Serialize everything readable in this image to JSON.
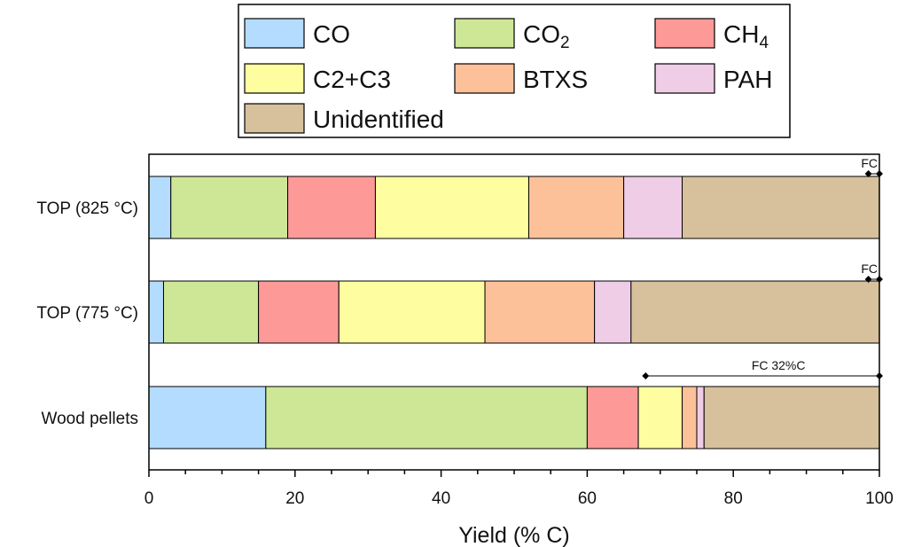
{
  "chart_data": {
    "type": "bar",
    "orientation": "horizontal",
    "stacked": true,
    "categories": [
      "TOP (825 °C)",
      "TOP (775 °C)",
      "Wood pellets"
    ],
    "series": [
      {
        "name": "CO",
        "color": "#b3dcfe",
        "values": [
          3,
          2,
          16
        ]
      },
      {
        "name": "CO2",
        "color": "#cde797",
        "values": [
          16,
          13,
          44
        ]
      },
      {
        "name": "CH4",
        "color": "#fd9a98",
        "values": [
          12,
          11,
          7
        ]
      },
      {
        "name": "C2+C3",
        "color": "#fefd9f",
        "values": [
          21,
          20,
          6
        ]
      },
      {
        "name": "BTXS",
        "color": "#fdc19a",
        "values": [
          13,
          15,
          2
        ]
      },
      {
        "name": "PAH",
        "color": "#efcde6",
        "values": [
          8,
          5,
          1
        ]
      },
      {
        "name": "Unidentified",
        "color": "#d7c09c",
        "values": [
          27,
          34,
          24
        ]
      }
    ],
    "xlabel": "Yield (% C)",
    "ylabel": "",
    "xlim": [
      0,
      100
    ],
    "xticks": [
      "0",
      "20",
      "40",
      "60",
      "80",
      "100"
    ],
    "legend_position": "top",
    "grid": false,
    "annotations": [
      {
        "category": "TOP (825 °C)",
        "text": "FC",
        "from": 98.5,
        "to": 100
      },
      {
        "category": "TOP (775 °C)",
        "text": "FC",
        "from": 98.5,
        "to": 100
      },
      {
        "category": "Wood pellets",
        "text": "FC 32%C",
        "from": 68,
        "to": 100
      }
    ]
  }
}
